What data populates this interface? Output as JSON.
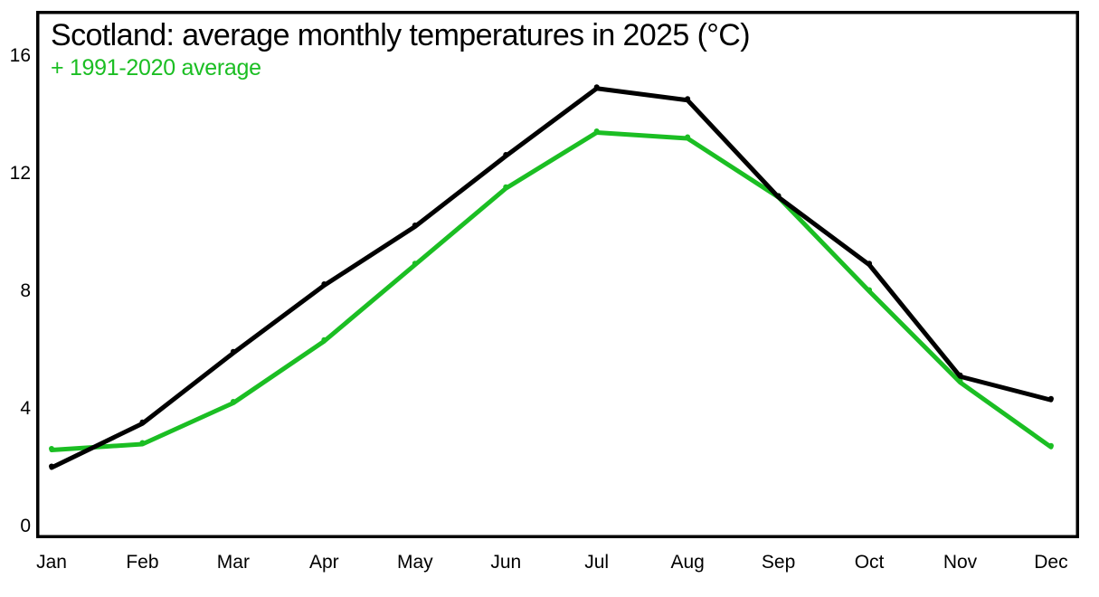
{
  "chart_data": {
    "type": "line",
    "title": "Scotland: average monthly temperatures in 2025 (°C)",
    "subtitle": "+ 1991-2020 average",
    "categories": [
      "Jan",
      "Feb",
      "Mar",
      "Apr",
      "May",
      "Jun",
      "Jul",
      "Aug",
      "Sep",
      "Oct",
      "Nov",
      "Dec"
    ],
    "series": [
      {
        "name": "2025",
        "color": "#000000",
        "values": [
          2.0,
          3.5,
          5.9,
          8.2,
          10.2,
          12.6,
          14.9,
          14.5,
          11.2,
          8.9,
          5.1,
          4.3
        ]
      },
      {
        "name": "1991-2020 average",
        "color": "#1bbe23",
        "values": [
          2.6,
          2.8,
          4.2,
          6.3,
          8.9,
          11.5,
          13.4,
          13.2,
          11.2,
          8.0,
          4.9,
          2.7
        ]
      }
    ],
    "yticks": [
      0,
      4,
      8,
      12,
      16
    ],
    "ylim": [
      -0.4,
      17.5
    ],
    "grid": false,
    "frame": true,
    "legend_position": "subtitle"
  },
  "colors": {
    "background": "#ffffff",
    "frame": "#000000",
    "line_2025": "#000000",
    "line_average": "#1bbe23"
  }
}
